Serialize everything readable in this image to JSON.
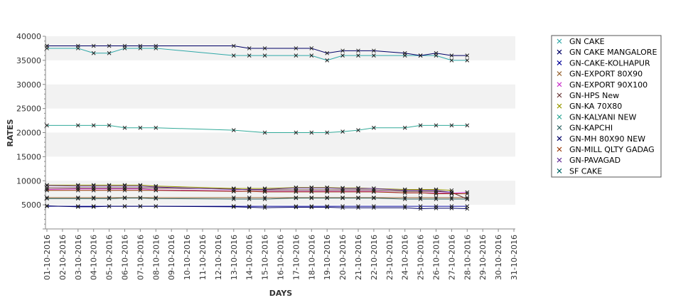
{
  "chart_data": {
    "type": "line",
    "xlabel": "DAYS",
    "ylabel": "RATES",
    "ylim": [
      0,
      40000
    ],
    "yticks": [
      5000,
      10000,
      15000,
      20000,
      25000,
      30000,
      35000,
      40000
    ],
    "grid": "alternating horizontal bands",
    "legend_position": "right",
    "categories": [
      "01-10-2016",
      "02-10-2016",
      "03-10-2016",
      "04-10-2016",
      "05-10-2016",
      "06-10-2016",
      "07-10-2016",
      "08-10-2016",
      "09-10-2016",
      "10-10-2016",
      "11-10-2016",
      "12-10-2016",
      "13-10-2016",
      "14-10-2016",
      "15-10-2016",
      "16-10-2016",
      "17-10-2016",
      "18-10-2016",
      "19-10-2016",
      "20-10-2016",
      "21-10-2016",
      "22-10-2016",
      "23-10-2016",
      "24-10-2016",
      "25-10-2016",
      "26-10-2016",
      "27-10-2016",
      "28-10-2016",
      "29-10-2016",
      "30-10-2016",
      "31-10-2016"
    ],
    "series": [
      {
        "name": "GN CAKE",
        "color": "#2fa8a8",
        "values": [
          37500,
          null,
          37500,
          36500,
          36500,
          37500,
          37500,
          37500,
          null,
          null,
          null,
          null,
          36000,
          36000,
          36000,
          null,
          36000,
          36000,
          35000,
          36000,
          36000,
          36000,
          null,
          36000,
          36000,
          36000,
          35000,
          35000,
          null,
          null,
          null
        ]
      },
      {
        "name": "GN CAKE MANGALORE",
        "color": "#000066",
        "values": [
          38000,
          null,
          38000,
          38000,
          38000,
          38000,
          38000,
          38000,
          null,
          null,
          null,
          null,
          38000,
          37500,
          37500,
          null,
          37500,
          37500,
          36500,
          37000,
          37000,
          37000,
          null,
          36500,
          36000,
          36500,
          36000,
          36000,
          null,
          null,
          null
        ]
      },
      {
        "name": "GN-CAKE-KOLHAPUR",
        "color": "#000099",
        "values": [
          4700,
          null,
          4700,
          4700,
          4700,
          4700,
          4700,
          4700,
          null,
          null,
          null,
          null,
          4700,
          4700,
          4700,
          null,
          4700,
          4700,
          4700,
          4700,
          4700,
          4700,
          null,
          4700,
          4700,
          4700,
          4700,
          4700,
          null,
          null,
          null
        ]
      },
      {
        "name": "GN-EXPORT 80X90",
        "color": "#996633",
        "values": [
          6500,
          null,
          6500,
          6500,
          6500,
          6500,
          6500,
          6500,
          null,
          null,
          null,
          null,
          6500,
          6500,
          6500,
          null,
          6500,
          6500,
          6500,
          6500,
          6500,
          6500,
          null,
          6500,
          6500,
          6500,
          6500,
          6500,
          null,
          null,
          null
        ]
      },
      {
        "name": "GN-EXPORT 90X100",
        "color": "#cc33cc",
        "values": [
          8200,
          null,
          8300,
          8300,
          8300,
          8300,
          8300,
          8100,
          null,
          null,
          null,
          null,
          7900,
          7800,
          7800,
          null,
          7800,
          7800,
          7800,
          7800,
          7800,
          7800,
          null,
          7500,
          7500,
          7500,
          7400,
          7600,
          null,
          null,
          null
        ]
      },
      {
        "name": "GN-HPS New",
        "color": "#663333",
        "values": [
          8500,
          null,
          8500,
          8500,
          8500,
          8500,
          8500,
          8500,
          null,
          null,
          null,
          null,
          8300,
          8100,
          8100,
          null,
          8100,
          8100,
          8100,
          8100,
          8100,
          8100,
          null,
          7800,
          7800,
          7800,
          7600,
          6200,
          null,
          null,
          null
        ]
      },
      {
        "name": "GN-KA 70X80",
        "color": "#999900",
        "values": [
          9100,
          null,
          9100,
          9100,
          9100,
          9100,
          9100,
          8900,
          null,
          null,
          null,
          null,
          8400,
          8400,
          8400,
          null,
          8600,
          8600,
          8600,
          8500,
          8500,
          8400,
          null,
          8200,
          8200,
          8200,
          8000,
          null,
          null,
          null,
          null
        ]
      },
      {
        "name": "GN-KALYANI NEW",
        "color": "#33aa99",
        "values": [
          21500,
          null,
          21500,
          21500,
          21500,
          21000,
          21000,
          21000,
          null,
          null,
          null,
          null,
          20500,
          null,
          20000,
          null,
          20000,
          20000,
          20000,
          20200,
          20500,
          21000,
          null,
          21000,
          21500,
          21500,
          21500,
          21500,
          null,
          null,
          null
        ]
      },
      {
        "name": "GN-KAPCHI",
        "color": "#336666",
        "values": [
          6300,
          null,
          6300,
          6300,
          6300,
          6400,
          6400,
          6300,
          null,
          null,
          null,
          null,
          6200,
          6200,
          6200,
          null,
          6400,
          6400,
          6400,
          6400,
          6400,
          6400,
          null,
          6200,
          6200,
          6200,
          6200,
          6200,
          null,
          null,
          null
        ]
      },
      {
        "name": "GN-MH 80X90 NEW",
        "color": "#000066",
        "values": [
          4800,
          null,
          4600,
          4600,
          4700,
          4700,
          4700,
          4700,
          null,
          null,
          null,
          null,
          4600,
          4500,
          4400,
          null,
          4500,
          4500,
          4500,
          4400,
          4400,
          4400,
          null,
          4400,
          4200,
          4300,
          4300,
          4200,
          null,
          null,
          null
        ]
      },
      {
        "name": "GN-MILL QLTY GADAG",
        "color": "#993300",
        "values": [
          8000,
          null,
          8000,
          8000,
          8000,
          8000,
          8000,
          8000,
          null,
          null,
          null,
          null,
          7800,
          7800,
          7700,
          null,
          7700,
          7700,
          7700,
          7700,
          7700,
          7700,
          null,
          7500,
          7500,
          7300,
          7300,
          7300,
          null,
          null,
          null
        ]
      },
      {
        "name": "GN-PAVAGAD",
        "color": "#663399",
        "values": [
          9000,
          null,
          8900,
          8900,
          8900,
          8900,
          8900,
          8700,
          null,
          null,
          null,
          null,
          8200,
          8200,
          8200,
          null,
          8500,
          8500,
          8500,
          8400,
          8400,
          8400,
          null,
          8000,
          8000,
          8000,
          7600,
          null,
          null,
          null,
          null
        ]
      },
      {
        "name": "SF CAKE",
        "color": "#006666",
        "values": [
          38000,
          null,
          null,
          null,
          null,
          null,
          null,
          null,
          null,
          null,
          null,
          null,
          null,
          null,
          null,
          null,
          null,
          null,
          null,
          null,
          null,
          null,
          null,
          null,
          null,
          null,
          null,
          null,
          null,
          null,
          null
        ]
      }
    ]
  }
}
